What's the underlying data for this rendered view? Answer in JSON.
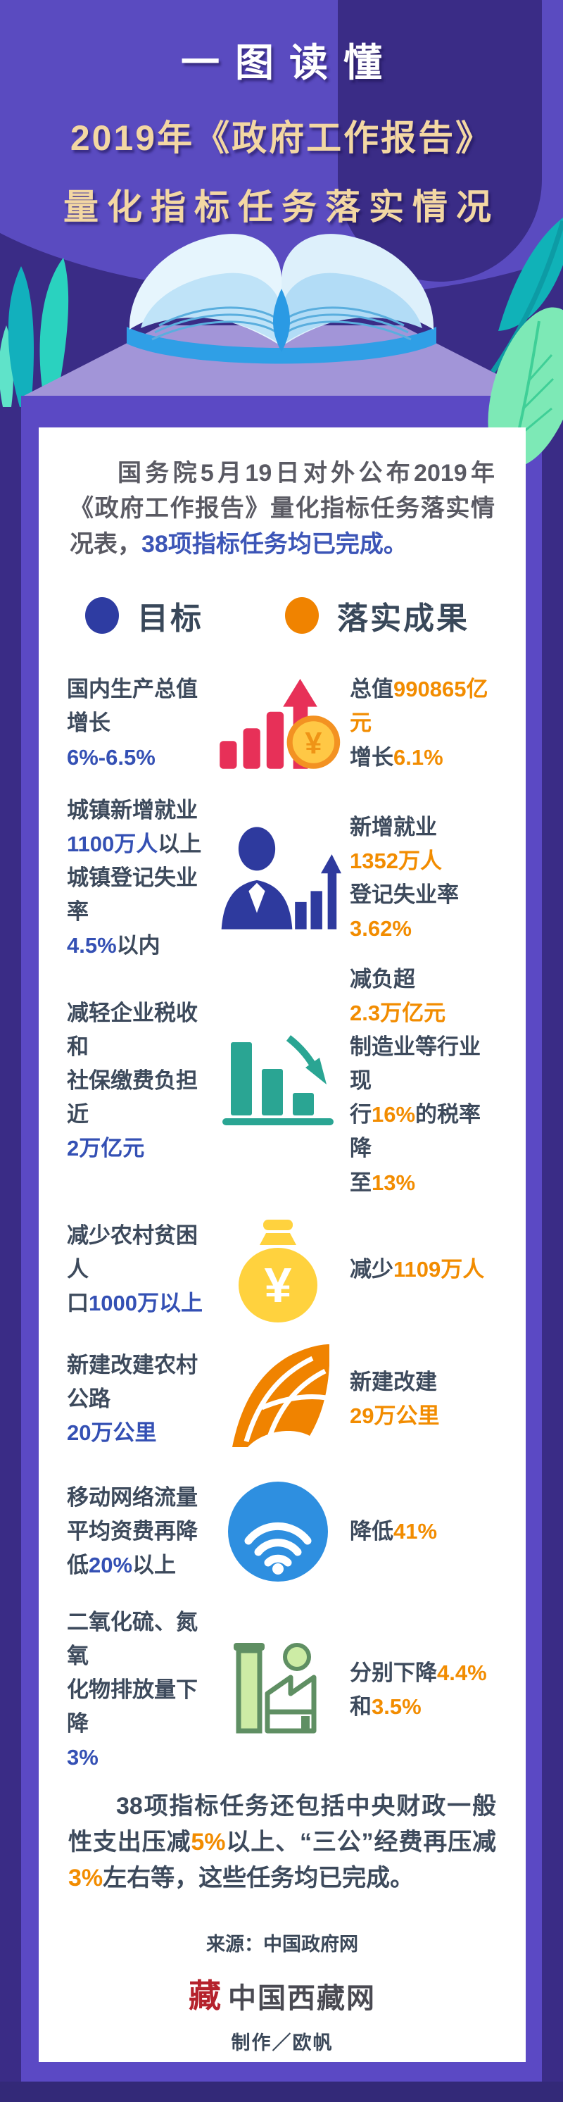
{
  "colors": {
    "background_dark": "#3a2c86",
    "background_light": "#5a4bc0",
    "pedestal": "#5b49c4",
    "pedestal_top": "#a295d8",
    "goal_blue": "#3450b4",
    "result_orange": "#f28c00",
    "legend_goal_dot": "#2e3ca2",
    "legend_result_dot": "#f08300",
    "title_gold": "#f3d7a3",
    "body_text": "#3d4a5c"
  },
  "header": {
    "line1": "一图读懂",
    "line2": "2019年《政府工作报告》",
    "line3": "量化指标任务落实情况"
  },
  "intro_segments": [
    {
      "t": "国务院5月19日对外公布2019年《政府工作报告》量化指标任务落实情况表，"
    },
    {
      "t": "38项指标任务均已完成。",
      "hl": 1
    }
  ],
  "legend": {
    "goal": "目标",
    "result": "落实成果"
  },
  "rows": [
    {
      "id": "gdp",
      "icon": "gdp",
      "icon_name": "bar-chart-up-coin-icon",
      "left": [
        {
          "t": "国内生产总值增长"
        },
        {
          "t": "6%-6.5%",
          "hl": 1,
          "br": 1
        }
      ],
      "right": [
        {
          "t": "总值"
        },
        {
          "t": "990865亿元",
          "hl": 1
        },
        {
          "t": "增长",
          "br": 1
        },
        {
          "t": "6.1%",
          "hl": 1
        }
      ]
    },
    {
      "id": "employment",
      "icon": "employment",
      "icon_name": "businessman-chart-icon",
      "left": [
        {
          "t": "城镇新增就业"
        },
        {
          "t": "1100万人",
          "hl": 1,
          "br": 1
        },
        {
          "t": "以上"
        },
        {
          "t": "城镇登记失业率",
          "br": 1
        },
        {
          "t": "4.5%",
          "hl": 1,
          "br": 1
        },
        {
          "t": "以内"
        }
      ],
      "right": [
        {
          "t": "新增就业"
        },
        {
          "t": "1352万人",
          "hl": 1,
          "br": 1
        },
        {
          "t": "登记失业率",
          "br": 1
        },
        {
          "t": "3.62%",
          "hl": 1,
          "br": 1
        }
      ]
    },
    {
      "id": "tax",
      "icon": "tax",
      "icon_name": "bar-chart-down-icon",
      "left": [
        {
          "t": "减轻企业税收和"
        },
        {
          "t": "社保缴费负担近",
          "br": 1
        },
        {
          "t": "2万亿元",
          "hl": 1,
          "br": 1
        }
      ],
      "right": [
        {
          "t": "减负超"
        },
        {
          "t": "2.3万亿元",
          "hl": 1,
          "br": 1
        },
        {
          "t": "制造业等行业现",
          "br": 1
        },
        {
          "t": "行",
          "br": 1
        },
        {
          "t": "16%",
          "hl": 1
        },
        {
          "t": "的税率降"
        },
        {
          "t": "至",
          "br": 1
        },
        {
          "t": "13%",
          "hl": 1
        }
      ]
    },
    {
      "id": "poverty",
      "icon": "poverty",
      "icon_name": "money-bag-icon",
      "left": [
        {
          "t": "减少农村贫困人"
        },
        {
          "t": "口",
          "br": 1
        },
        {
          "t": "1000万以上",
          "hl": 1
        }
      ],
      "right": [
        {
          "t": "减少"
        },
        {
          "t": "1109万人",
          "hl": 1
        }
      ]
    },
    {
      "id": "road",
      "icon": "road",
      "icon_name": "highway-road-icon",
      "left": [
        {
          "t": "新建改建农村公路"
        },
        {
          "t": "20万公里",
          "hl": 1,
          "br": 1
        }
      ],
      "right": [
        {
          "t": "新建改建"
        },
        {
          "t": "29万公里",
          "hl": 1,
          "br": 1
        }
      ]
    },
    {
      "id": "mobile",
      "icon": "mobile",
      "icon_name": "wifi-icon",
      "left": [
        {
          "t": "移动网络流量"
        },
        {
          "t": "平均资费再降",
          "br": 1
        },
        {
          "t": "低",
          "br": 1
        },
        {
          "t": "20%",
          "hl": 1
        },
        {
          "t": "以上"
        }
      ],
      "right": [
        {
          "t": "降低"
        },
        {
          "t": "41%",
          "hl": 1
        }
      ]
    },
    {
      "id": "emissions",
      "icon": "emissions",
      "icon_name": "factory-emissions-icon",
      "left": [
        {
          "t": "二氧化硫、氮氧"
        },
        {
          "t": "化物排放量下降",
          "br": 1
        },
        {
          "t": "3%",
          "hl": 1,
          "br": 1
        }
      ],
      "right": [
        {
          "t": "分别下降"
        },
        {
          "t": "4.4%",
          "hl": 1
        },
        {
          "t": "和",
          "br": 1
        },
        {
          "t": "3.5%",
          "hl": 1
        }
      ]
    }
  ],
  "footer_segments": [
    {
      "t": "38项指标任务还包括中央财政一般性支出压减"
    },
    {
      "t": "5%",
      "hl": 1
    },
    {
      "t": "以上、“三公”经费再压减"
    },
    {
      "t": "3%",
      "hl": 1
    },
    {
      "t": "左右等，这些任务均已完成。"
    }
  ],
  "footer": {
    "source": "来源：中国政府网",
    "logo_mark": "藏",
    "logo_name": "中国西藏网",
    "credit": "制作／欧帆"
  }
}
